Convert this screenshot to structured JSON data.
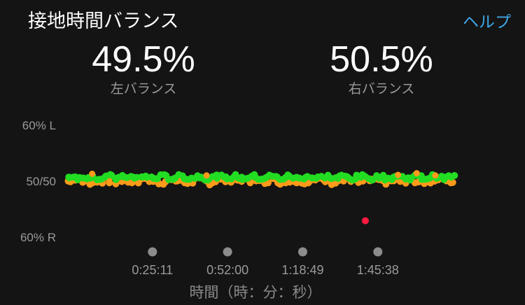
{
  "header": {
    "title": "接地時間バランス",
    "help_label": "ヘルプ"
  },
  "stats": {
    "left": {
      "value": "49.5%",
      "label": "左バランス"
    },
    "right": {
      "value": "50.5%",
      "label": "右バランス"
    }
  },
  "colors": {
    "background": "#141414",
    "accent": "#3ea6e6",
    "green": "#22dd22",
    "orange": "#ff9a1a",
    "red": "#ff1a40"
  },
  "chart_data": {
    "type": "scatter",
    "title": "",
    "xlabel": "時間（時：分：秒）",
    "ylabel": "",
    "y_tick_labels": [
      "60% L",
      "50/50",
      "60% R"
    ],
    "x_tick_labels": [
      "0:25:11",
      "0:52:00",
      "1:18:49",
      "1:45:38"
    ],
    "x_ticks_seconds": [
      1511,
      3120,
      4729,
      6338
    ],
    "xlim_seconds": [
      0,
      8320
    ],
    "ylim": [
      -10,
      10
    ],
    "seed": 7,
    "series": [
      {
        "color": "green",
        "values_note": "",
        "count": 150,
        "spread": 0.35,
        "bias": 0.55
      },
      {
        "color": "orange",
        "count": 110,
        "spread": 0.45,
        "bias": -0.15
      }
    ],
    "outliers": [
      {
        "x": 6400,
        "y": -7.2,
        "color": "red"
      }
    ]
  }
}
